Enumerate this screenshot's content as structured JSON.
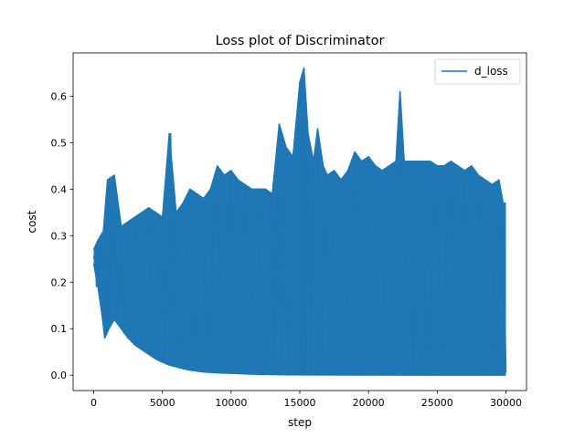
{
  "chart_data": {
    "type": "line",
    "title": "Loss plot of Discriminator",
    "xlabel": "step",
    "ylabel": "cost",
    "xlim": [
      -1500,
      31500
    ],
    "ylim": [
      -0.033,
      0.693
    ],
    "xticks": [
      0,
      5000,
      10000,
      15000,
      20000,
      25000,
      30000
    ],
    "yticks": [
      0.0,
      0.1,
      0.2,
      0.3,
      0.4,
      0.5,
      0.6
    ],
    "xtick_labels": [
      "0",
      "5000",
      "10000",
      "15000",
      "20000",
      "25000",
      "30000"
    ],
    "ytick_labels": [
      "0.0",
      "0.1",
      "0.2",
      "0.3",
      "0.4",
      "0.5",
      "0.6"
    ],
    "grid": false,
    "legend_position": "top-right",
    "series": [
      {
        "name": "d_loss",
        "color": "#1f77b4",
        "points_sampled": [
          [
            0,
            0.25
          ],
          [
            100,
            0.27
          ],
          [
            200,
            0.19
          ],
          [
            300,
            0.26
          ],
          [
            500,
            0.3
          ],
          [
            600,
            0.13
          ],
          [
            700,
            0.2
          ],
          [
            800,
            0.09
          ],
          [
            1000,
            0.41
          ],
          [
            1100,
            0.11
          ],
          [
            1500,
            0.43
          ],
          [
            1700,
            0.12
          ],
          [
            2000,
            0.3
          ],
          [
            2200,
            0.09
          ],
          [
            3000,
            0.33
          ],
          [
            3200,
            0.07
          ],
          [
            4000,
            0.35
          ],
          [
            4200,
            0.05
          ],
          [
            5000,
            0.33
          ],
          [
            5200,
            0.03
          ],
          [
            5600,
            0.52
          ],
          [
            5800,
            0.02
          ],
          [
            6000,
            0.35
          ],
          [
            6300,
            0.015
          ],
          [
            7000,
            0.4
          ],
          [
            7200,
            0.01
          ],
          [
            8000,
            0.38
          ],
          [
            8200,
            0.008
          ],
          [
            9000,
            0.45
          ],
          [
            9200,
            0.006
          ],
          [
            10000,
            0.43
          ],
          [
            10200,
            0.005
          ],
          [
            11000,
            0.41
          ],
          [
            11200,
            0.004
          ],
          [
            12000,
            0.4
          ],
          [
            12200,
            0.003
          ],
          [
            13000,
            0.39
          ],
          [
            13200,
            0.003
          ],
          [
            13500,
            0.54
          ],
          [
            13700,
            0.002
          ],
          [
            14000,
            0.49
          ],
          [
            14200,
            0.002
          ],
          [
            15000,
            0.63
          ],
          [
            15100,
            0.001
          ],
          [
            15300,
            0.66
          ],
          [
            15400,
            0.001
          ],
          [
            15600,
            0.52
          ],
          [
            15800,
            0.001
          ],
          [
            16000,
            0.45
          ],
          [
            16300,
            0.53
          ],
          [
            16500,
            0.001
          ],
          [
            17000,
            0.42
          ],
          [
            17200,
            0.001
          ],
          [
            17500,
            0.44
          ],
          [
            18000,
            0.4
          ],
          [
            18200,
            0.001
          ],
          [
            19000,
            0.48
          ],
          [
            19200,
            0.001
          ],
          [
            20000,
            0.47
          ],
          [
            20200,
            0.001
          ],
          [
            21000,
            0.44
          ],
          [
            21200,
            0.001
          ],
          [
            22000,
            0.45
          ],
          [
            22300,
            0.61
          ],
          [
            22400,
            0.001
          ],
          [
            23000,
            0.46
          ],
          [
            23200,
            0.001
          ],
          [
            24000,
            0.46
          ],
          [
            24200,
            0.001
          ],
          [
            25000,
            0.45
          ],
          [
            25200,
            0.001
          ],
          [
            26000,
            0.46
          ],
          [
            26200,
            0.001
          ],
          [
            27000,
            0.44
          ],
          [
            27200,
            0.001
          ],
          [
            28000,
            0.43
          ],
          [
            28200,
            0.001
          ],
          [
            29000,
            0.41
          ],
          [
            29200,
            0.001
          ],
          [
            29800,
            0.37
          ],
          [
            30000,
            0.005
          ]
        ],
        "upper_envelope": [
          [
            0,
            0.27
          ],
          [
            300,
            0.29
          ],
          [
            700,
            0.31
          ],
          [
            1000,
            0.42
          ],
          [
            1500,
            0.43
          ],
          [
            2000,
            0.32
          ],
          [
            2500,
            0.33
          ],
          [
            3000,
            0.34
          ],
          [
            3500,
            0.35
          ],
          [
            4000,
            0.36
          ],
          [
            4500,
            0.35
          ],
          [
            5000,
            0.34
          ],
          [
            5500,
            0.52
          ],
          [
            6000,
            0.35
          ],
          [
            6500,
            0.37
          ],
          [
            7000,
            0.4
          ],
          [
            7500,
            0.39
          ],
          [
            8000,
            0.38
          ],
          [
            8500,
            0.4
          ],
          [
            9000,
            0.45
          ],
          [
            9500,
            0.43
          ],
          [
            10000,
            0.44
          ],
          [
            10500,
            0.42
          ],
          [
            11000,
            0.41
          ],
          [
            11500,
            0.4
          ],
          [
            12000,
            0.4
          ],
          [
            12500,
            0.4
          ],
          [
            13000,
            0.39
          ],
          [
            13500,
            0.54
          ],
          [
            14000,
            0.49
          ],
          [
            14500,
            0.47
          ],
          [
            15000,
            0.63
          ],
          [
            15300,
            0.66
          ],
          [
            15600,
            0.52
          ],
          [
            16000,
            0.46
          ],
          [
            16300,
            0.53
          ],
          [
            16700,
            0.45
          ],
          [
            17000,
            0.43
          ],
          [
            17500,
            0.44
          ],
          [
            18000,
            0.42
          ],
          [
            18500,
            0.44
          ],
          [
            19000,
            0.48
          ],
          [
            19500,
            0.46
          ],
          [
            20000,
            0.47
          ],
          [
            20500,
            0.45
          ],
          [
            21000,
            0.44
          ],
          [
            21500,
            0.45
          ],
          [
            22000,
            0.46
          ],
          [
            22300,
            0.61
          ],
          [
            22600,
            0.46
          ],
          [
            23000,
            0.46
          ],
          [
            23500,
            0.46
          ],
          [
            24000,
            0.46
          ],
          [
            24500,
            0.46
          ],
          [
            25000,
            0.45
          ],
          [
            25500,
            0.45
          ],
          [
            26000,
            0.46
          ],
          [
            26500,
            0.45
          ],
          [
            27000,
            0.44
          ],
          [
            27500,
            0.45
          ],
          [
            28000,
            0.43
          ],
          [
            28500,
            0.42
          ],
          [
            29000,
            0.41
          ],
          [
            29500,
            0.42
          ],
          [
            29800,
            0.37
          ],
          [
            30000,
            0.37
          ]
        ],
        "lower_envelope": [
          [
            0,
            0.24
          ],
          [
            300,
            0.19
          ],
          [
            600,
            0.13
          ],
          [
            800,
            0.08
          ],
          [
            1100,
            0.1
          ],
          [
            1500,
            0.12
          ],
          [
            2000,
            0.1
          ],
          [
            2500,
            0.08
          ],
          [
            3000,
            0.065
          ],
          [
            3500,
            0.055
          ],
          [
            4000,
            0.045
          ],
          [
            4500,
            0.035
          ],
          [
            5000,
            0.028
          ],
          [
            5500,
            0.022
          ],
          [
            6000,
            0.018
          ],
          [
            6500,
            0.014
          ],
          [
            7000,
            0.011
          ],
          [
            7500,
            0.009
          ],
          [
            8000,
            0.007
          ],
          [
            8500,
            0.006
          ],
          [
            9000,
            0.005
          ],
          [
            10000,
            0.004
          ],
          [
            11000,
            0.003
          ],
          [
            12000,
            0.002
          ],
          [
            14000,
            0.001
          ],
          [
            16000,
            0.0005
          ],
          [
            20000,
            0.0003
          ],
          [
            25000,
            0.0002
          ],
          [
            30000,
            0.0001
          ]
        ]
      }
    ]
  }
}
